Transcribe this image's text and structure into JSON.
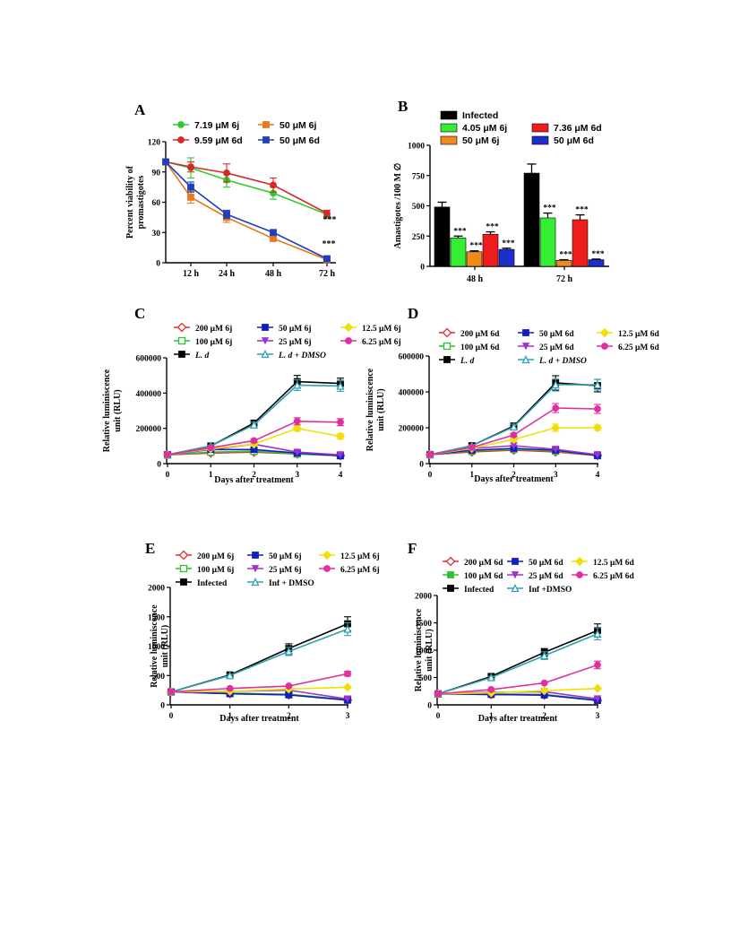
{
  "chart_data": [
    {
      "panel": "A",
      "type": "line",
      "xlabel": "",
      "ylabel": "Percent viability of promastigotes",
      "x_ticks": [
        "12 h",
        "24 h",
        "48 h",
        "72 h"
      ],
      "y_ticks": [
        "0",
        "30",
        "60",
        "90",
        "120"
      ],
      "ylim": [
        0,
        120
      ],
      "x": [
        0,
        12,
        24,
        48,
        72
      ],
      "series": [
        {
          "name": "7.19 μM 6j",
          "color": "#2ecc2e",
          "marker": "circle",
          "values": [
            100,
            94,
            82,
            69,
            48
          ],
          "errors": [
            0,
            10,
            7,
            6,
            4
          ]
        },
        {
          "name": "9.59 μM 6d",
          "color": "#d62828",
          "marker": "circle",
          "values": [
            100,
            95,
            89,
            77,
            49
          ],
          "errors": [
            0,
            5,
            9,
            7,
            3
          ]
        },
        {
          "name": "50 μM 6j",
          "color": "#e8781e",
          "marker": "square",
          "values": [
            100,
            65,
            45,
            24,
            3
          ],
          "errors": [
            0,
            6,
            5,
            2,
            1
          ]
        },
        {
          "name": "50 μM 6d",
          "color": "#1f3fbf",
          "marker": "square",
          "values": [
            100,
            75,
            48,
            30,
            4
          ],
          "errors": [
            0,
            5,
            4,
            2,
            1
          ]
        }
      ],
      "annotations": [
        "***",
        "***"
      ]
    },
    {
      "panel": "B",
      "type": "bar",
      "xlabel": "",
      "ylabel": "Amastigotes /100 M ∅",
      "categories": [
        "48 h",
        "72 h"
      ],
      "y_ticks": [
        "0",
        "250",
        "500",
        "750",
        "1000"
      ],
      "ylim": [
        0,
        1000
      ],
      "series": [
        {
          "name": "Infected",
          "color": "#000000",
          "values": [
            490,
            770
          ],
          "errors": [
            40,
            75
          ],
          "stars": [
            "",
            ""
          ]
        },
        {
          "name": "4.05 μM 6j",
          "color": "#33ee33",
          "values": [
            235,
            400
          ],
          "errors": [
            15,
            40
          ],
          "stars": [
            "***",
            "***"
          ]
        },
        {
          "name": "50 μM 6j",
          "color": "#f08a1a",
          "values": [
            120,
            50
          ],
          "errors": [
            8,
            5
          ],
          "stars": [
            "***",
            "***"
          ]
        },
        {
          "name": "7.36 μM 6d",
          "color": "#ee1c1c",
          "values": [
            265,
            385
          ],
          "errors": [
            20,
            40
          ],
          "stars": [
            "***",
            "***"
          ]
        },
        {
          "name": "50 μM 6d",
          "color": "#1c2fcc",
          "values": [
            140,
            55
          ],
          "errors": [
            10,
            5
          ],
          "stars": [
            "***",
            "***"
          ]
        }
      ]
    },
    {
      "panel": "C",
      "type": "line",
      "xlabel": "Days after treatment",
      "ylabel": "Relative luminiscence unit (RLU)",
      "x": [
        0,
        1,
        2,
        3,
        4
      ],
      "x_ticks": [
        "0",
        "1",
        "2",
        "3",
        "4"
      ],
      "y_ticks": [
        "0",
        "200000",
        "400000",
        "600000"
      ],
      "ylim": [
        0,
        600000
      ],
      "series": [
        {
          "name": "200 μM 6j",
          "color": "#e03030",
          "marker": "diamond-open",
          "values": [
            50000,
            60000,
            65000,
            55000,
            45000
          ],
          "errors": [
            0,
            0,
            0,
            0,
            0
          ]
        },
        {
          "name": "100 μM 6j",
          "color": "#30c030",
          "marker": "square-open",
          "values": [
            50000,
            65000,
            70000,
            55000,
            45000
          ],
          "errors": [
            0,
            0,
            0,
            0,
            0
          ]
        },
        {
          "name": "L. d",
          "color": "#000000",
          "marker": "square",
          "values": [
            50000,
            100000,
            230000,
            465000,
            455000
          ],
          "errors": [
            0,
            5000,
            15000,
            35000,
            30000
          ]
        },
        {
          "name": "50 μM 6j",
          "color": "#1020c0",
          "marker": "square",
          "values": [
            50000,
            80000,
            80000,
            60000,
            45000
          ],
          "errors": [
            0,
            0,
            0,
            0,
            0
          ]
        },
        {
          "name": "25 μM 6j",
          "color": "#a030d0",
          "marker": "triangle-down",
          "values": [
            50000,
            80000,
            110000,
            65000,
            50000
          ],
          "errors": [
            0,
            0,
            0,
            0,
            0
          ]
        },
        {
          "name": "L. d + DMSO",
          "color": "#30a0b0",
          "marker": "triangle-open",
          "values": [
            50000,
            100000,
            220000,
            445000,
            440000
          ],
          "errors": [
            0,
            5000,
            15000,
            30000,
            30000
          ]
        },
        {
          "name": "12.5 μM 6j",
          "color": "#f0e000",
          "marker": "diamond",
          "values": [
            50000,
            85000,
            110000,
            200000,
            155000
          ],
          "errors": [
            0,
            5000,
            10000,
            15000,
            15000
          ]
        },
        {
          "name": "6.25 μM 6j",
          "color": "#e030a0",
          "marker": "circle",
          "values": [
            50000,
            90000,
            130000,
            240000,
            235000
          ],
          "errors": [
            0,
            5000,
            10000,
            20000,
            20000
          ]
        }
      ]
    },
    {
      "panel": "D",
      "type": "line",
      "xlabel": "Days after treatment",
      "ylabel": "Relative luminiscence unit (RLU)",
      "x": [
        0,
        1,
        2,
        3,
        4
      ],
      "x_ticks": [
        "0",
        "1",
        "2",
        "3",
        "4"
      ],
      "y_ticks": [
        "0",
        "200000",
        "400000",
        "600000"
      ],
      "ylim": [
        0,
        600000
      ],
      "series": [
        {
          "name": "200 μM 6d",
          "color": "#e03030",
          "marker": "diamond-open",
          "values": [
            50000,
            65000,
            75000,
            65000,
            45000
          ],
          "errors": [
            0,
            0,
            0,
            0,
            0
          ]
        },
        {
          "name": "100 μM 6d",
          "color": "#30c030",
          "marker": "square-open",
          "values": [
            50000,
            70000,
            80000,
            70000,
            45000
          ],
          "errors": [
            0,
            0,
            0,
            0,
            0
          ]
        },
        {
          "name": "L. d",
          "color": "#000000",
          "marker": "square",
          "values": [
            50000,
            100000,
            210000,
            450000,
            435000
          ],
          "errors": [
            0,
            5000,
            15000,
            40000,
            35000
          ]
        },
        {
          "name": "50 μM 6d",
          "color": "#1020c0",
          "marker": "square",
          "values": [
            50000,
            75000,
            85000,
            75000,
            45000
          ],
          "errors": [
            0,
            0,
            0,
            0,
            0
          ]
        },
        {
          "name": "25 μM 6d",
          "color": "#a030d0",
          "marker": "triangle-down",
          "values": [
            50000,
            85000,
            100000,
            80000,
            50000
          ],
          "errors": [
            0,
            0,
            0,
            0,
            0
          ]
        },
        {
          "name": "L. d + DMSO",
          "color": "#30a0b0",
          "marker": "triangle-open",
          "values": [
            50000,
            100000,
            205000,
            440000,
            440000
          ],
          "errors": [
            0,
            5000,
            15000,
            35000,
            30000
          ]
        },
        {
          "name": "12.5 μM 6d",
          "color": "#f0e000",
          "marker": "diamond",
          "values": [
            50000,
            85000,
            135000,
            200000,
            200000
          ],
          "errors": [
            0,
            5000,
            10000,
            20000,
            15000
          ]
        },
        {
          "name": "6.25 μM 6d",
          "color": "#e030a0",
          "marker": "circle",
          "values": [
            50000,
            90000,
            160000,
            310000,
            305000
          ],
          "errors": [
            0,
            5000,
            10000,
            25000,
            25000
          ]
        }
      ]
    },
    {
      "panel": "E",
      "type": "line",
      "xlabel": "Days after treatment",
      "ylabel": "Relative luminiscence unit (RLU)",
      "x": [
        0,
        1,
        2,
        3
      ],
      "x_ticks": [
        "0",
        "1",
        "2",
        "3"
      ],
      "y_ticks": [
        "0",
        "500",
        "1000",
        "1500",
        "2000"
      ],
      "ylim": [
        0,
        2000
      ],
      "series": [
        {
          "name": "200 μM 6j",
          "color": "#e03030",
          "marker": "diamond-open",
          "values": [
            220,
            190,
            170,
            80
          ],
          "errors": [
            0,
            0,
            0,
            0
          ]
        },
        {
          "name": "100 μM 6j",
          "color": "#30c030",
          "marker": "square-open",
          "values": [
            220,
            200,
            180,
            90
          ],
          "errors": [
            0,
            0,
            0,
            0
          ]
        },
        {
          "name": "Infected",
          "color": "#000000",
          "marker": "square",
          "values": [
            220,
            510,
            960,
            1380
          ],
          "errors": [
            0,
            20,
            80,
            120
          ]
        },
        {
          "name": "50 μM 6j",
          "color": "#1020c0",
          "marker": "square",
          "values": [
            220,
            190,
            170,
            80
          ],
          "errors": [
            0,
            0,
            0,
            0
          ]
        },
        {
          "name": "25 μM 6j",
          "color": "#a030d0",
          "marker": "triangle-down",
          "values": [
            220,
            230,
            250,
            100
          ],
          "errors": [
            0,
            0,
            0,
            0
          ]
        },
        {
          "name": "Inf + DMSO",
          "color": "#30a0b0",
          "marker": "triangle-open",
          "values": [
            220,
            500,
            910,
            1290
          ],
          "errors": [
            0,
            20,
            70,
            110
          ]
        },
        {
          "name": "12.5 μM 6j",
          "color": "#f0e000",
          "marker": "diamond",
          "values": [
            220,
            230,
            270,
            300
          ],
          "errors": [
            0,
            0,
            0,
            0
          ]
        },
        {
          "name": "6.25 μM 6j",
          "color": "#e030a0",
          "marker": "circle",
          "values": [
            220,
            280,
            320,
            530
          ],
          "errors": [
            0,
            0,
            0,
            40
          ]
        }
      ]
    },
    {
      "panel": "F",
      "type": "line",
      "xlabel": "Days after treatment",
      "ylabel": "Relative luminiscence unit (RLU)",
      "x": [
        0,
        1,
        2,
        3
      ],
      "x_ticks": [
        "0",
        "1",
        "2",
        "3"
      ],
      "y_ticks": [
        "0",
        "500",
        "1000",
        "1500",
        "2000"
      ],
      "ylim": [
        0,
        2000
      ],
      "series": [
        {
          "name": "200 μM 6d",
          "color": "#e03030",
          "marker": "diamond-open",
          "values": [
            200,
            190,
            180,
            80
          ],
          "errors": [
            0,
            0,
            0,
            0
          ]
        },
        {
          "name": "100 μM 6d",
          "color": "#30c030",
          "marker": "square",
          "values": [
            200,
            200,
            190,
            90
          ],
          "errors": [
            0,
            0,
            0,
            0
          ]
        },
        {
          "name": "Infected",
          "color": "#000000",
          "marker": "square",
          "values": [
            200,
            520,
            960,
            1360
          ],
          "errors": [
            0,
            20,
            70,
            120
          ]
        },
        {
          "name": "50 μM 6d",
          "color": "#1020c0",
          "marker": "square",
          "values": [
            200,
            190,
            180,
            80
          ],
          "errors": [
            0,
            0,
            0,
            0
          ]
        },
        {
          "name": "25 μM 6d",
          "color": "#a030d0",
          "marker": "triangle-down",
          "values": [
            200,
            230,
            240,
            110
          ],
          "errors": [
            0,
            0,
            0,
            0
          ]
        },
        {
          "name": "Inf +DMSO",
          "color": "#30a0b0",
          "marker": "triangle-open",
          "values": [
            200,
            500,
            900,
            1300
          ],
          "errors": [
            0,
            20,
            70,
            110
          ]
        },
        {
          "name": "12.5 μM 6d",
          "color": "#f0e000",
          "marker": "diamond",
          "values": [
            200,
            220,
            260,
            300
          ],
          "errors": [
            0,
            0,
            0,
            0
          ]
        },
        {
          "name": "6.25 μM 6d",
          "color": "#e030a0",
          "marker": "circle",
          "values": [
            200,
            280,
            400,
            730
          ],
          "errors": [
            0,
            0,
            0,
            70
          ]
        }
      ]
    }
  ]
}
